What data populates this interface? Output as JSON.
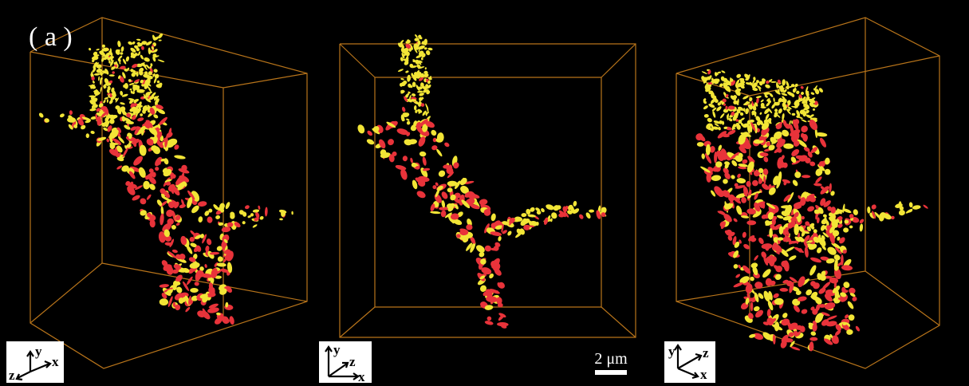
{
  "figure_label": "( a )",
  "panels": [
    {
      "axis_labels": {
        "y": "y",
        "z": "z",
        "x": "x"
      }
    },
    {
      "axis_labels": {
        "y": "y",
        "z": "z",
        "x": "x"
      }
    },
    {
      "axis_labels": {
        "y": "y",
        "z": "z",
        "x": "x"
      }
    }
  ],
  "scale_bar": "2 μm"
}
